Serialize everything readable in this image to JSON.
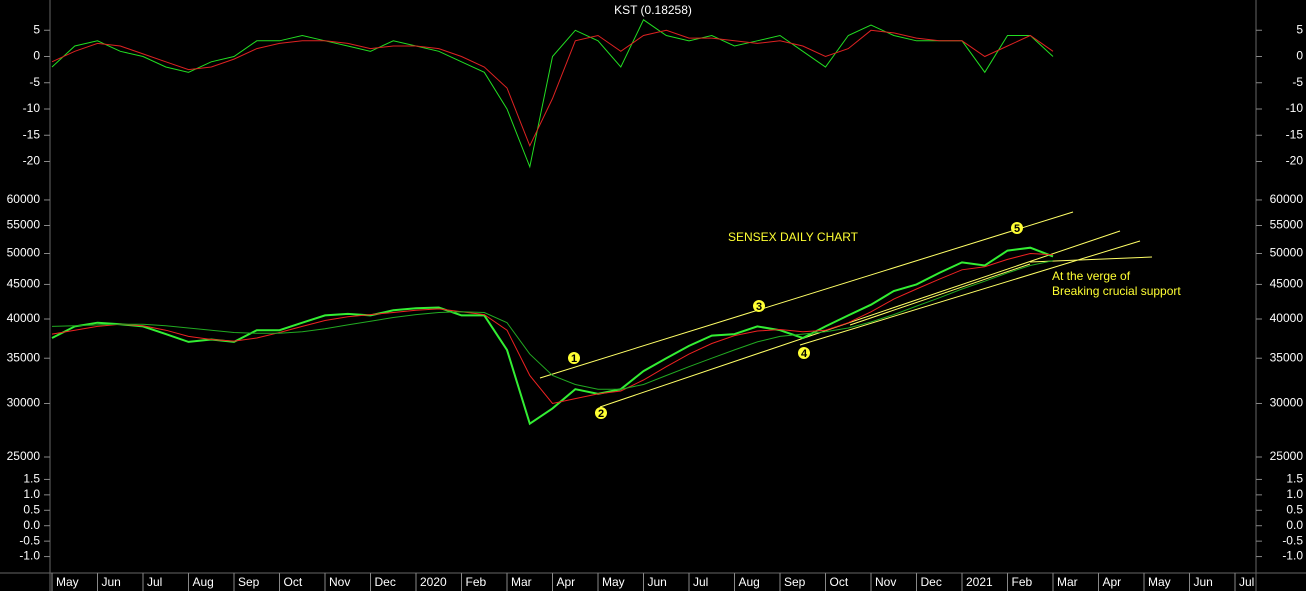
{
  "chart_data": [
    {
      "type": "line",
      "title": "KST (0.18258)",
      "ylim": [
        -22,
        10
      ],
      "yticks": [
        5,
        0,
        -5,
        -10,
        -15,
        -20
      ],
      "series": [
        {
          "color": "#22dd22",
          "values": [
            -2,
            2,
            3,
            1,
            0,
            -2,
            -3,
            -1,
            0,
            3,
            3,
            4,
            3,
            2,
            1,
            3,
            2,
            1,
            -1,
            -3,
            -10,
            -21,
            0,
            5,
            3,
            -2,
            7,
            4,
            3,
            4,
            2,
            3,
            4,
            1,
            -2,
            4,
            6,
            4,
            3,
            3,
            3,
            -3,
            4,
            4,
            0,
            null,
            null,
            null,
            null,
            null,
            null,
            null,
            null,
            null
          ]
        },
        {
          "color": "#dd2222",
          "values": [
            -1,
            1,
            2.5,
            2,
            0.5,
            -1,
            -2.5,
            -2,
            -0.5,
            1.5,
            2.5,
            3,
            3,
            2.5,
            1.5,
            2,
            2,
            1.5,
            0,
            -2,
            -6,
            -17,
            -8,
            3,
            4,
            1,
            4,
            5,
            3.5,
            3.5,
            3,
            2.5,
            3,
            2,
            0,
            1.5,
            5,
            4.5,
            3.5,
            3,
            3,
            0,
            2,
            4,
            1,
            null,
            null,
            null,
            null,
            null,
            null,
            null,
            null,
            null
          ]
        }
      ]
    },
    {
      "type": "line",
      "title": "SENSEX DAILY CHART",
      "log_scale": true,
      "ylim": [
        24000,
        64000
      ],
      "yticks": [
        60000,
        55000,
        50000,
        45000,
        40000,
        35000,
        30000,
        25000
      ],
      "annotations": [
        "At the verge of",
        "Breaking crucial support"
      ],
      "markers": [
        "1",
        "2",
        "3",
        "4",
        "5"
      ],
      "series": [
        {
          "color": "#33ee33",
          "values": [
            37500,
            39000,
            39500,
            39300,
            39000,
            38000,
            37000,
            37300,
            37000,
            38500,
            38500,
            39500,
            40500,
            40700,
            40500,
            41200,
            41500,
            41600,
            40500,
            40500,
            36000,
            28000,
            29500,
            31500,
            31000,
            31500,
            33500,
            35000,
            36500,
            37800,
            38000,
            39000,
            38500,
            37500,
            39000,
            40500,
            42000,
            44000,
            45000,
            46800,
            48500,
            48000,
            50500,
            51000,
            49500,
            null,
            null,
            null,
            null,
            null,
            null,
            null,
            null,
            null
          ]
        },
        {
          "color": "#ee2222",
          "values": [
            38000,
            38500,
            39000,
            39300,
            39100,
            38500,
            37700,
            37300,
            37100,
            37500,
            38200,
            39000,
            39800,
            40300,
            40600,
            40900,
            41200,
            41400,
            41000,
            40600,
            38500,
            33000,
            30000,
            30500,
            31000,
            31300,
            32500,
            34000,
            35500,
            36800,
            37800,
            38400,
            38600,
            38300,
            38500,
            39500,
            41000,
            42800,
            44300,
            45800,
            47300,
            47800,
            49000,
            50000,
            49800,
            null,
            null,
            null,
            null,
            null,
            null,
            null,
            null,
            null
          ]
        },
        {
          "color": "#22aa22",
          "values": [
            39000,
            39100,
            39200,
            39300,
            39300,
            39100,
            38800,
            38500,
            38200,
            38100,
            38100,
            38300,
            38700,
            39200,
            39700,
            40200,
            40600,
            40900,
            41000,
            40900,
            39500,
            35500,
            33000,
            32000,
            31500,
            31500,
            32000,
            33000,
            34000,
            35000,
            36000,
            37000,
            37700,
            38000,
            38300,
            38800,
            39600,
            40600,
            41800,
            43000,
            44300,
            45500,
            46800,
            48000,
            48800,
            null,
            null,
            null,
            null,
            null,
            null,
            null,
            null,
            null
          ]
        }
      ]
    },
    {
      "type": "line",
      "ylim": [
        -1.5,
        2
      ],
      "yticks": [
        1.5,
        {
          "value": 1.0,
          "label": "1.0"
        },
        0.5,
        {
          "value": 0.0,
          "label": "0.0"
        },
        -0.5,
        {
          "value": -1.0,
          "label": "-1.0"
        }
      ],
      "categories": [
        "May",
        null,
        "Jun",
        null,
        "Jul",
        null,
        "Aug",
        null,
        "Sep",
        null,
        "Oct",
        null,
        "Nov",
        null,
        "Dec",
        null,
        "2020",
        null,
        "Feb",
        null,
        "Mar",
        null,
        "Apr",
        null,
        "May",
        null,
        "Jun",
        null,
        "Jul",
        null,
        "Aug",
        null,
        "Sep",
        null,
        "Oct",
        null,
        "Nov",
        null,
        "Dec",
        null,
        "2021",
        null,
        "Feb",
        null,
        "Mar",
        null,
        "Apr",
        null,
        "May",
        null,
        "Jun",
        null,
        "Jul",
        null
      ]
    }
  ]
}
